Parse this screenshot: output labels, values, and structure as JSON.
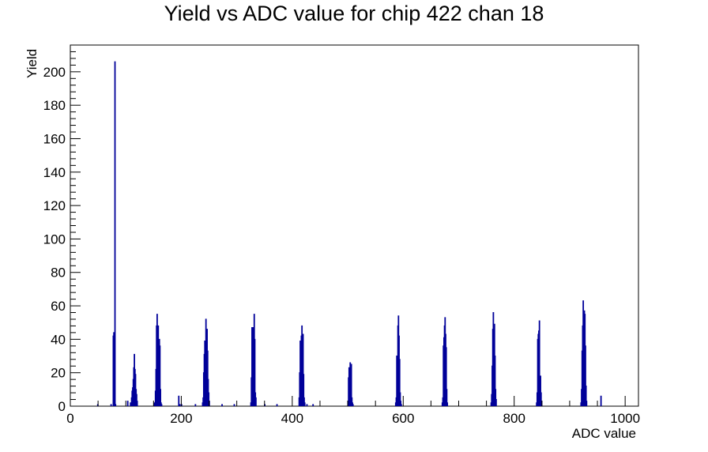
{
  "chart_data": {
    "type": "bar",
    "title": "Yield vs ADC value for chip 422 chan 18",
    "xlabel": "ADC value",
    "ylabel": "Yield",
    "xlim": [
      0,
      1024
    ],
    "ylim": [
      0,
      216
    ],
    "xticks": [
      0,
      200,
      400,
      600,
      800,
      1000
    ],
    "yticks": [
      0,
      20,
      40,
      60,
      80,
      100,
      120,
      140,
      160,
      180,
      200
    ],
    "grid": false,
    "line_color": "#000099",
    "bins": [
      [
        49,
        1
      ],
      [
        73,
        1
      ],
      [
        77,
        42
      ],
      [
        78,
        44
      ],
      [
        79,
        42
      ],
      [
        80,
        206
      ],
      [
        81,
        1
      ],
      [
        103,
        3
      ],
      [
        108,
        2
      ],
      [
        110,
        5
      ],
      [
        111,
        9
      ],
      [
        112,
        11
      ],
      [
        113,
        16
      ],
      [
        114,
        23
      ],
      [
        115,
        31
      ],
      [
        116,
        22
      ],
      [
        117,
        19
      ],
      [
        118,
        10
      ],
      [
        119,
        7
      ],
      [
        120,
        3
      ],
      [
        151,
        2
      ],
      [
        153,
        9
      ],
      [
        154,
        22
      ],
      [
        155,
        48
      ],
      [
        156,
        55
      ],
      [
        157,
        38
      ],
      [
        158,
        48
      ],
      [
        159,
        30
      ],
      [
        160,
        40
      ],
      [
        161,
        36
      ],
      [
        162,
        10
      ],
      [
        163,
        2
      ],
      [
        164,
        1
      ],
      [
        195,
        6
      ],
      [
        197,
        1
      ],
      [
        200,
        1
      ],
      [
        225,
        1
      ],
      [
        238,
        2
      ],
      [
        239,
        5
      ],
      [
        240,
        20
      ],
      [
        241,
        31
      ],
      [
        242,
        39
      ],
      [
        243,
        35
      ],
      [
        244,
        52
      ],
      [
        245,
        38
      ],
      [
        246,
        46
      ],
      [
        247,
        33
      ],
      [
        248,
        16
      ],
      [
        249,
        8
      ],
      [
        250,
        3
      ],
      [
        273,
        1
      ],
      [
        295,
        1
      ],
      [
        325,
        2
      ],
      [
        326,
        17
      ],
      [
        327,
        47
      ],
      [
        328,
        40
      ],
      [
        329,
        47
      ],
      [
        330,
        29
      ],
      [
        331,
        55
      ],
      [
        332,
        40
      ],
      [
        333,
        8
      ],
      [
        334,
        5
      ],
      [
        350,
        1
      ],
      [
        372,
        1
      ],
      [
        412,
        5
      ],
      [
        413,
        20
      ],
      [
        414,
        39
      ],
      [
        415,
        35
      ],
      [
        416,
        42
      ],
      [
        417,
        48
      ],
      [
        418,
        38
      ],
      [
        419,
        43
      ],
      [
        420,
        19
      ],
      [
        421,
        5
      ],
      [
        422,
        2
      ],
      [
        426,
        1
      ],
      [
        437,
        1
      ],
      [
        500,
        3
      ],
      [
        501,
        17
      ],
      [
        502,
        23
      ],
      [
        503,
        10
      ],
      [
        504,
        26
      ],
      [
        505,
        22
      ],
      [
        506,
        25
      ],
      [
        507,
        5
      ],
      [
        508,
        2
      ],
      [
        509,
        1
      ],
      [
        586,
        2
      ],
      [
        587,
        5
      ],
      [
        588,
        30
      ],
      [
        589,
        30
      ],
      [
        590,
        48
      ],
      [
        591,
        54
      ],
      [
        592,
        42
      ],
      [
        593,
        28
      ],
      [
        594,
        8
      ],
      [
        595,
        3
      ],
      [
        596,
        1
      ],
      [
        670,
        2
      ],
      [
        671,
        5
      ],
      [
        672,
        36
      ],
      [
        673,
        41
      ],
      [
        674,
        48
      ],
      [
        675,
        53
      ],
      [
        676,
        43
      ],
      [
        677,
        35
      ],
      [
        678,
        10
      ],
      [
        679,
        2
      ],
      [
        758,
        2
      ],
      [
        759,
        7
      ],
      [
        760,
        24
      ],
      [
        761,
        46
      ],
      [
        762,
        56
      ],
      [
        763,
        44
      ],
      [
        764,
        49
      ],
      [
        765,
        30
      ],
      [
        766,
        10
      ],
      [
        767,
        4
      ],
      [
        840,
        2
      ],
      [
        841,
        8
      ],
      [
        842,
        40
      ],
      [
        843,
        43
      ],
      [
        844,
        45
      ],
      [
        845,
        51
      ],
      [
        846,
        15
      ],
      [
        847,
        18
      ],
      [
        848,
        8
      ],
      [
        849,
        3
      ],
      [
        920,
        2
      ],
      [
        921,
        10
      ],
      [
        922,
        33
      ],
      [
        923,
        48
      ],
      [
        924,
        63
      ],
      [
        925,
        44
      ],
      [
        926,
        57
      ],
      [
        927,
        55
      ],
      [
        928,
        36
      ],
      [
        929,
        12
      ],
      [
        930,
        3
      ],
      [
        956,
        6
      ]
    ]
  }
}
